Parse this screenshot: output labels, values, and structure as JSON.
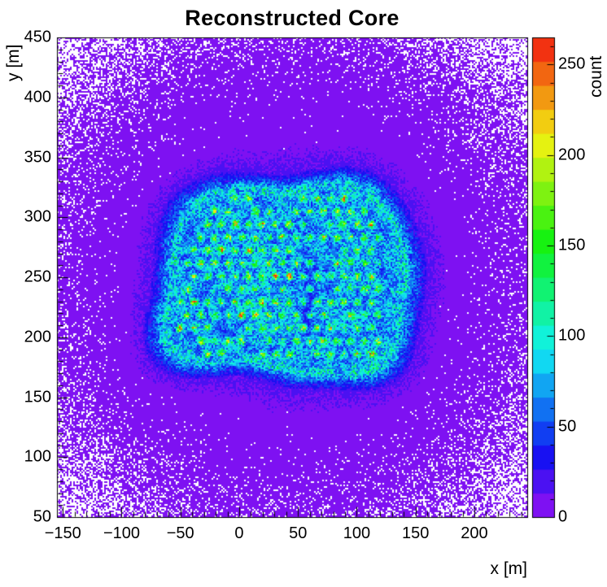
{
  "figure": {
    "background_color": "#ffffff"
  },
  "chart_data": {
    "type": "heatmap",
    "title": "Reconstructed Core",
    "xlabel": "x [m]",
    "ylabel": "y [m]",
    "zlabel": "count",
    "xlim": [
      -155,
      245
    ],
    "ylim": [
      50,
      450
    ],
    "zlim": [
      0,
      265
    ],
    "x_ticks": [
      -150,
      -100,
      -50,
      0,
      50,
      100,
      150,
      200
    ],
    "y_ticks": [
      50,
      100,
      150,
      200,
      250,
      300,
      350,
      400,
      450
    ],
    "z_ticks": [
      0,
      50,
      100,
      150,
      200,
      250
    ],
    "minor_tick_step": 10,
    "grid": false,
    "legend_position": "right-colorbar",
    "palette": {
      "style": "root-rainbow",
      "levels": 20,
      "hue_start": 276,
      "hue_end": 2,
      "saturation": 0.93,
      "value": 0.95,
      "zero_bin_color": "#ffffff"
    },
    "distribution": {
      "description": "2D histogram of reconstructed shower core positions: diffuse violet background whose occupancy falls off radially (empty white bins increasing toward the edges); a central rounded-square cyan region spanning roughly x = -60..140 m, y = 170..330 m with a brighter cyan rim; inside it a staggered grid of bright green detector-position hotspots spaced about 11 m, a few yellow-orange; a faint low-count vertical streak near x = 60 m.",
      "seed": 20230517,
      "bin_size_m": 2,
      "background": {
        "center": [
          45,
          250
        ],
        "peak_mean": 16,
        "falloff_sigma_m": 150,
        "zero_softening": 1.6
      },
      "blob": {
        "center": [
          42,
          248
        ],
        "half_width_x": 97,
        "half_width_y": 80,
        "rotation_deg": -4,
        "squareness": 4,
        "base_level": 55,
        "rim_boost": 20,
        "rim_width": 0.06,
        "halo_level": 12,
        "halo_width": 0.22,
        "mottle_scale_m": 7,
        "mottle_min": 0.65,
        "mottle_span": 0.7,
        "boundary_harmonics": [
          [
            2,
            0.045,
            1.3
          ],
          [
            3,
            0.038,
            4.1
          ],
          [
            5,
            0.03,
            2.3
          ],
          [
            7,
            0.022,
            0.7
          ]
        ]
      },
      "void_streak": {
        "x_center": 60,
        "sigma_x": 7,
        "y_range": [
          198,
          266
        ],
        "depth": 24
      },
      "dot_grid": {
        "spacing_x": 11.6,
        "spacing_y": 10.8,
        "x_range": [
          -50,
          122
        ],
        "y_range": [
          186,
          318
        ],
        "inside_s_max": 0.88,
        "peak": 95,
        "sigma_m": 2.0,
        "missing_fraction": 0.1,
        "bright_fraction": 0.05,
        "bright_peak": 165
      }
    }
  }
}
